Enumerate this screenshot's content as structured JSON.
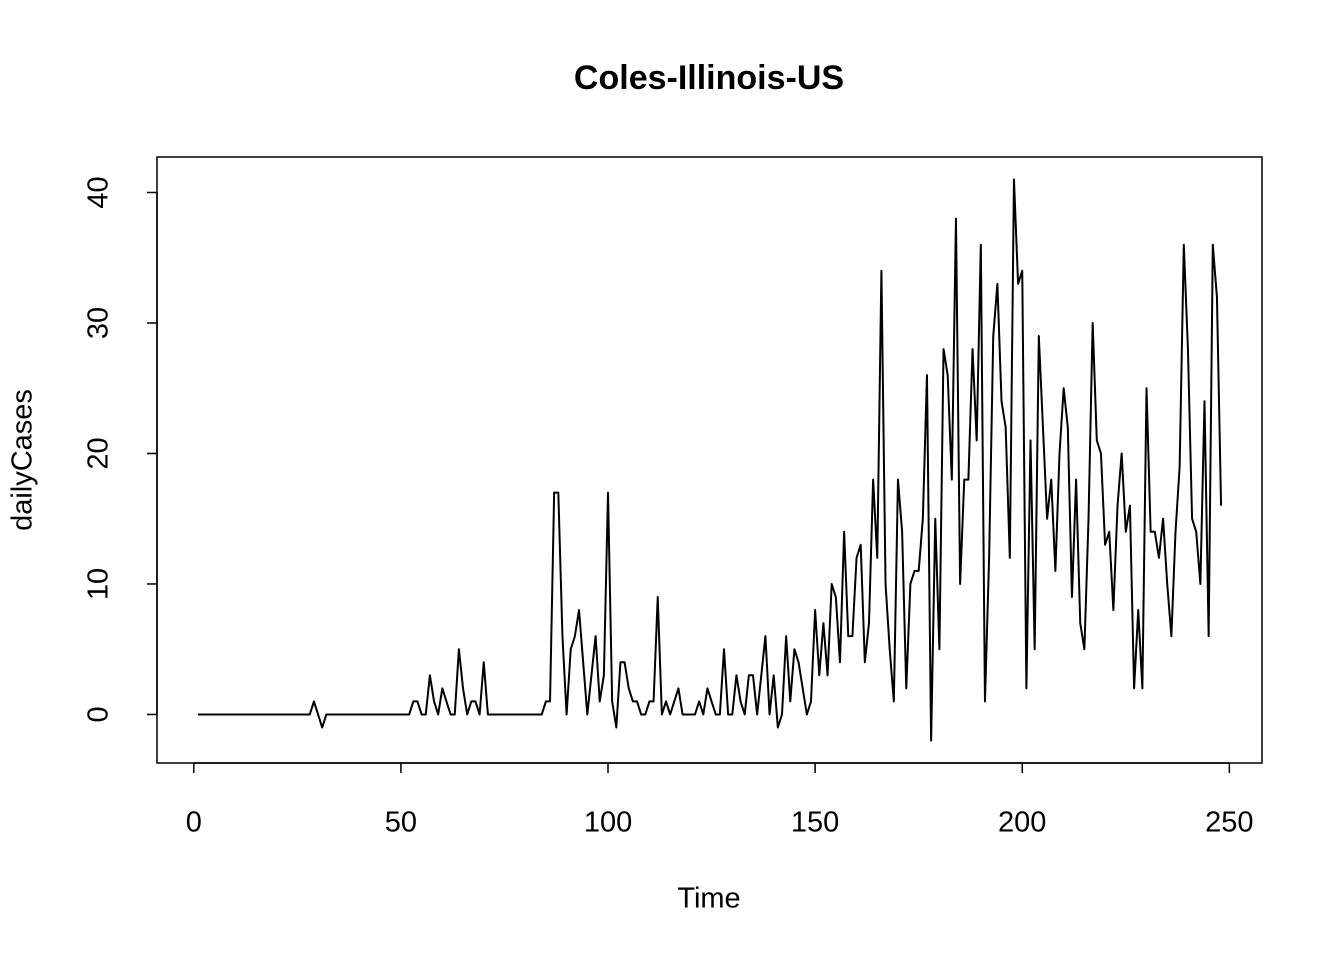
{
  "chart_data": {
    "type": "line",
    "title": "Coles-Illinois-US",
    "x_label": "Time",
    "y_label": "dailyCases",
    "color": "#000000",
    "xlim": [
      -8.88,
      257.88
    ],
    "ylim": [
      -3.72,
      42.72
    ],
    "xticks": [
      0,
      50,
      100,
      150,
      200,
      250
    ],
    "yticks": [
      0,
      10,
      20,
      30,
      40
    ],
    "x": [
      1,
      2,
      3,
      4,
      5,
      6,
      7,
      8,
      9,
      10,
      11,
      12,
      13,
      14,
      15,
      16,
      17,
      18,
      19,
      20,
      21,
      22,
      23,
      24,
      25,
      26,
      27,
      28,
      29,
      30,
      31,
      32,
      33,
      34,
      35,
      36,
      37,
      38,
      39,
      40,
      41,
      42,
      43,
      44,
      45,
      46,
      47,
      48,
      49,
      50,
      51,
      52,
      53,
      54,
      55,
      56,
      57,
      58,
      59,
      60,
      61,
      62,
      63,
      64,
      65,
      66,
      67,
      68,
      69,
      70,
      71,
      72,
      73,
      74,
      75,
      76,
      77,
      78,
      79,
      80,
      81,
      82,
      83,
      84,
      85,
      86,
      87,
      88,
      89,
      90,
      91,
      92,
      93,
      94,
      95,
      96,
      97,
      98,
      99,
      100,
      101,
      102,
      103,
      104,
      105,
      106,
      107,
      108,
      109,
      110,
      111,
      112,
      113,
      114,
      115,
      116,
      117,
      118,
      119,
      120,
      121,
      122,
      123,
      124,
      125,
      126,
      127,
      128,
      129,
      130,
      131,
      132,
      133,
      134,
      135,
      136,
      137,
      138,
      139,
      140,
      141,
      142,
      143,
      144,
      145,
      146,
      147,
      148,
      149,
      150,
      151,
      152,
      153,
      154,
      155,
      156,
      157,
      158,
      159,
      160,
      161,
      162,
      163,
      164,
      165,
      166,
      167,
      168,
      169,
      170,
      171,
      172,
      173,
      174,
      175,
      176,
      177,
      178,
      179,
      180,
      181,
      182,
      183,
      184,
      185,
      186,
      187,
      188,
      189,
      190,
      191,
      192,
      193,
      194,
      195,
      196,
      197,
      198,
      199,
      200,
      201,
      202,
      203,
      204,
      205,
      206,
      207,
      208,
      209,
      210,
      211,
      212,
      213,
      214,
      215,
      216,
      217,
      218,
      219,
      220,
      221,
      222,
      223,
      224,
      225,
      226,
      227,
      228,
      229,
      230,
      231,
      232,
      233,
      234,
      235,
      236,
      237,
      238,
      239,
      240,
      241,
      242,
      243,
      244,
      245,
      246,
      247,
      248
    ],
    "values": [
      0,
      0,
      0,
      0,
      0,
      0,
      0,
      0,
      0,
      0,
      0,
      0,
      0,
      0,
      0,
      0,
      0,
      0,
      0,
      0,
      0,
      0,
      0,
      0,
      0,
      0,
      0,
      0,
      1,
      0,
      -1,
      0,
      0,
      0,
      0,
      0,
      0,
      0,
      0,
      0,
      0,
      0,
      0,
      0,
      0,
      0,
      0,
      0,
      0,
      0,
      0,
      0,
      1,
      1,
      0,
      0,
      3,
      1,
      0,
      2,
      1,
      0,
      0,
      5,
      2,
      0,
      1,
      1,
      0,
      4,
      0,
      0,
      0,
      0,
      0,
      0,
      0,
      0,
      0,
      0,
      0,
      0,
      0,
      0,
      1,
      1,
      17,
      17,
      6,
      0,
      5,
      6,
      8,
      4,
      0,
      3,
      6,
      1,
      3,
      17,
      1,
      -1,
      4,
      4,
      2,
      1,
      1,
      0,
      0,
      1,
      1,
      9,
      0,
      1,
      0,
      1,
      2,
      0,
      0,
      0,
      0,
      1,
      0,
      2,
      1,
      0,
      0,
      5,
      0,
      0,
      3,
      1,
      0,
      3,
      3,
      0,
      3,
      6,
      0,
      3,
      -1,
      0,
      6,
      1,
      5,
      4,
      2,
      0,
      1,
      8,
      3,
      7,
      3,
      10,
      9,
      4,
      14,
      6,
      6,
      12,
      13,
      4,
      7,
      18,
      12,
      34,
      10,
      5,
      1,
      18,
      14,
      2,
      10,
      11,
      11,
      15,
      26,
      -2,
      15,
      5,
      28,
      26,
      18,
      38,
      10,
      18,
      18,
      28,
      21,
      36,
      1,
      12,
      29,
      33,
      24,
      22,
      12,
      41,
      33,
      34,
      2,
      21,
      5,
      29,
      22,
      15,
      18,
      11,
      20,
      25,
      22,
      9,
      18,
      7,
      5,
      15,
      30,
      21,
      20,
      13,
      14,
      8,
      16,
      20,
      14,
      16,
      2,
      8,
      2,
      25,
      14,
      14,
      12,
      15,
      10,
      6,
      14,
      19,
      36,
      28,
      15,
      14,
      10,
      24,
      6,
      36,
      32,
      16
    ]
  }
}
